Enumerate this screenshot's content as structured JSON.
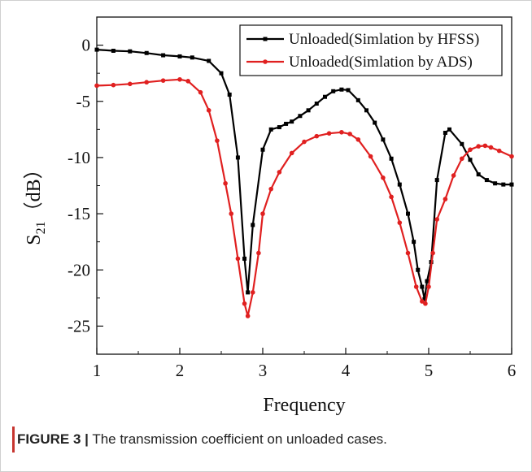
{
  "caption": {
    "label": "FIGURE 3 |",
    "text": "The transmission coefficient on unloaded cases."
  },
  "chart_data": {
    "type": "line",
    "xlabel": "Frequency",
    "ylabel_main": "S",
    "ylabel_sub": "21",
    "ylabel_unit": "（dB）",
    "xlim": [
      1,
      6
    ],
    "ylim": [
      -27.5,
      2.5
    ],
    "x_ticks": [
      1,
      2,
      3,
      4,
      5,
      6
    ],
    "y_ticks": [
      0,
      -5,
      -10,
      -15,
      -20,
      -25
    ],
    "x_tick_labels": [
      "1",
      "2",
      "3",
      "4",
      "5",
      "6"
    ],
    "y_tick_labels": [
      "0",
      "-5",
      "-10",
      "-15",
      "-20",
      "-25"
    ],
    "grid": false,
    "legend_position": "top-right",
    "series": [
      {
        "name": "Unloaded(Simlation by HFSS)",
        "color": "#000000",
        "x": [
          1.0,
          1.2,
          1.4,
          1.6,
          1.8,
          2.0,
          2.15,
          2.35,
          2.5,
          2.6,
          2.7,
          2.78,
          2.82,
          2.88,
          3.0,
          3.1,
          3.2,
          3.28,
          3.35,
          3.45,
          3.55,
          3.65,
          3.75,
          3.85,
          3.95,
          4.03,
          4.15,
          4.25,
          4.35,
          4.45,
          4.55,
          4.65,
          4.75,
          4.82,
          4.87,
          4.92,
          4.95,
          4.98,
          5.03,
          5.1,
          5.2,
          5.25,
          5.4,
          5.5,
          5.6,
          5.7,
          5.8,
          5.9,
          6.0
        ],
        "y": [
          -0.4,
          -0.5,
          -0.55,
          -0.7,
          -0.9,
          -1.0,
          -1.1,
          -1.4,
          -2.5,
          -4.4,
          -10.0,
          -19.0,
          -22.0,
          -16.0,
          -9.3,
          -7.5,
          -7.3,
          -7.0,
          -6.8,
          -6.3,
          -5.8,
          -5.2,
          -4.6,
          -4.1,
          -3.95,
          -4.0,
          -4.9,
          -5.8,
          -6.9,
          -8.4,
          -10.1,
          -12.4,
          -15.0,
          -17.5,
          -20.0,
          -21.5,
          -22.6,
          -21.0,
          -19.3,
          -12.0,
          -7.8,
          -7.5,
          -8.8,
          -10.2,
          -11.5,
          -12.0,
          -12.3,
          -12.4,
          -12.4
        ]
      },
      {
        "name": "Unloaded(Simlation by ADS)",
        "color": "#e02020",
        "x": [
          1.0,
          1.2,
          1.4,
          1.6,
          1.8,
          2.0,
          2.1,
          2.25,
          2.35,
          2.45,
          2.55,
          2.62,
          2.7,
          2.78,
          2.82,
          2.88,
          2.95,
          3.0,
          3.1,
          3.2,
          3.35,
          3.5,
          3.65,
          3.8,
          3.95,
          4.05,
          4.15,
          4.3,
          4.45,
          4.55,
          4.65,
          4.75,
          4.85,
          4.92,
          4.96,
          5.0,
          5.05,
          5.1,
          5.2,
          5.3,
          5.4,
          5.5,
          5.6,
          5.68,
          5.75,
          5.85,
          6.0
        ],
        "y": [
          -3.6,
          -3.55,
          -3.45,
          -3.3,
          -3.15,
          -3.05,
          -3.2,
          -4.2,
          -5.8,
          -8.5,
          -12.3,
          -15.0,
          -19.0,
          -23.0,
          -24.1,
          -22.0,
          -18.5,
          -15.0,
          -12.8,
          -11.3,
          -9.6,
          -8.6,
          -8.1,
          -7.85,
          -7.75,
          -7.9,
          -8.4,
          -9.9,
          -11.8,
          -13.5,
          -15.8,
          -18.5,
          -21.5,
          -22.8,
          -23.0,
          -21.5,
          -18.5,
          -15.5,
          -13.7,
          -11.6,
          -10.1,
          -9.3,
          -9.0,
          -8.95,
          -9.1,
          -9.4,
          -9.9
        ]
      }
    ]
  }
}
